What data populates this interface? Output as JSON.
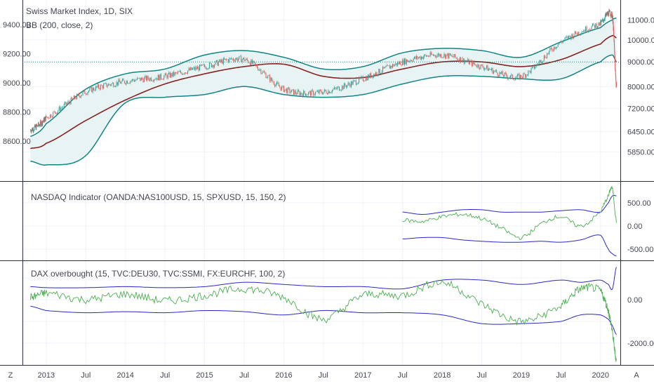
{
  "chart_data": [
    {
      "type": "line",
      "title": "Swiss Market Index, 1D, SIX",
      "indicator_label": "BB (200, close, 2)",
      "left_axis_ticks": [
        "9400.00",
        "9200.00",
        "9000.00",
        "8800.00",
        "8600.00"
      ],
      "left_axis_values": [
        9400,
        9200,
        9000,
        8800,
        8600
      ],
      "right_axis_ticks": [
        "11000.00",
        "10000.00",
        "9000.00",
        "8000.00",
        "7200.00",
        "6450.00",
        "5850.00"
      ],
      "right_axis_values": [
        11000,
        10000,
        9000,
        8000,
        7200,
        6450,
        5850
      ],
      "right_axis_scale": "log",
      "series": [],
      "x": [
        2012.8,
        2013.0,
        2013.5,
        2014.0,
        2014.5,
        2015.0,
        2015.5,
        2016.0,
        2016.5,
        2017.0,
        2017.5,
        2018.0,
        2018.5,
        2019.0,
        2019.5,
        2020.0,
        2020.15,
        2020.2
      ],
      "price_close": [
        6500,
        6900,
        7800,
        8200,
        8400,
        8800,
        9100,
        7900,
        7800,
        8300,
        9000,
        9300,
        8800,
        8400,
        9900,
        10800,
        11200,
        8000
      ],
      "bb_middle": [
        5950,
        6100,
        6800,
        7500,
        8100,
        8500,
        8800,
        8900,
        8400,
        8350,
        8700,
        9000,
        9000,
        8800,
        9100,
        9800,
        10200,
        10100
      ],
      "bb_upper": [
        6300,
        6700,
        7900,
        8500,
        8700,
        9300,
        9500,
        9200,
        8700,
        8800,
        9400,
        9600,
        9500,
        9200,
        9900,
        10600,
        11000,
        11100
      ],
      "bb_lower": [
        5600,
        5500,
        5750,
        7400,
        7600,
        7700,
        8000,
        7700,
        7600,
        7700,
        8100,
        8400,
        8400,
        8300,
        8300,
        9000,
        9300,
        9000
      ],
      "dotted_level": "9000.00",
      "colors": {
        "price_up": "#26a69a",
        "price_down": "#ef5350",
        "bb_basis": "#872323",
        "bb_band": "#138484",
        "bb_fill": "#e8f4f3"
      }
    },
    {
      "type": "line",
      "label": "NASDAQ Indicator (OANDA:NAS100USD, 15, SPXUSD, 15, 150, 2)",
      "axis_ticks": [
        "500.00",
        "0.00",
        "-500.00"
      ],
      "axis_values": [
        500,
        0,
        -500
      ],
      "x": [
        2017.5,
        2017.75,
        2018.0,
        2018.25,
        2018.5,
        2018.75,
        2019.0,
        2019.25,
        2019.5,
        2019.75,
        2020.0,
        2020.1,
        2020.15,
        2020.2
      ],
      "value": [
        130,
        100,
        200,
        250,
        160,
        -50,
        -250,
        50,
        200,
        0,
        300,
        650,
        800,
        100
      ],
      "upper": [
        300,
        250,
        300,
        350,
        350,
        300,
        300,
        300,
        330,
        350,
        300,
        500,
        650,
        650
      ],
      "lower": [
        -280,
        -250,
        -250,
        -300,
        -330,
        -350,
        -350,
        -330,
        -350,
        -300,
        -200,
        -500,
        -600,
        -650
      ],
      "colors": {
        "value": "#4caf50",
        "bands": "#2828c8"
      }
    },
    {
      "type": "line",
      "label": "DAX overbought (15, TVC:DEU30, TVC:SSMI, FX:EURCHF, 100, 2)",
      "axis_ticks": [
        "0.00",
        "-2000.00"
      ],
      "axis_values": [
        0,
        -2000
      ],
      "x": [
        2012.8,
        2013.0,
        2013.5,
        2014.0,
        2014.5,
        2015.0,
        2015.5,
        2016.0,
        2016.5,
        2017.0,
        2017.5,
        2018.0,
        2018.5,
        2019.0,
        2019.5,
        2019.75,
        2020.0,
        2020.1,
        2020.15,
        2020.2
      ],
      "value": [
        100,
        300,
        0,
        250,
        -50,
        200,
        500,
        100,
        -900,
        200,
        200,
        800,
        -200,
        -1000,
        -300,
        500,
        400,
        -500,
        -1500,
        -2800
      ],
      "upper": [
        600,
        550,
        550,
        600,
        550,
        600,
        800,
        700,
        600,
        600,
        500,
        900,
        900,
        700,
        900,
        800,
        900,
        700,
        500,
        1500
      ],
      "lower": [
        -300,
        -500,
        -600,
        -550,
        -600,
        -500,
        -550,
        -700,
        -500,
        -600,
        -600,
        -700,
        -1100,
        -1100,
        -1000,
        -700,
        -700,
        -900,
        -1200,
        -1600
      ],
      "colors": {
        "value": "#4caf50",
        "bands": "#2828c8"
      }
    }
  ],
  "x_axis": {
    "labels": [
      "2013",
      "Jul",
      "2014",
      "Jul",
      "2015",
      "Jul",
      "2016",
      "Jul",
      "2017",
      "Jul",
      "2018",
      "Jul",
      "2019",
      "Jul",
      "2020"
    ],
    "values": [
      2013.0,
      2013.5,
      2014.0,
      2014.5,
      2015.0,
      2015.5,
      2016.0,
      2016.5,
      2017.0,
      2017.5,
      2018.0,
      2018.5,
      2019.0,
      2019.5,
      2020.0
    ],
    "range": [
      2012.7,
      2020.25
    ]
  },
  "corner_labels": {
    "left": "Z",
    "right": "A"
  }
}
